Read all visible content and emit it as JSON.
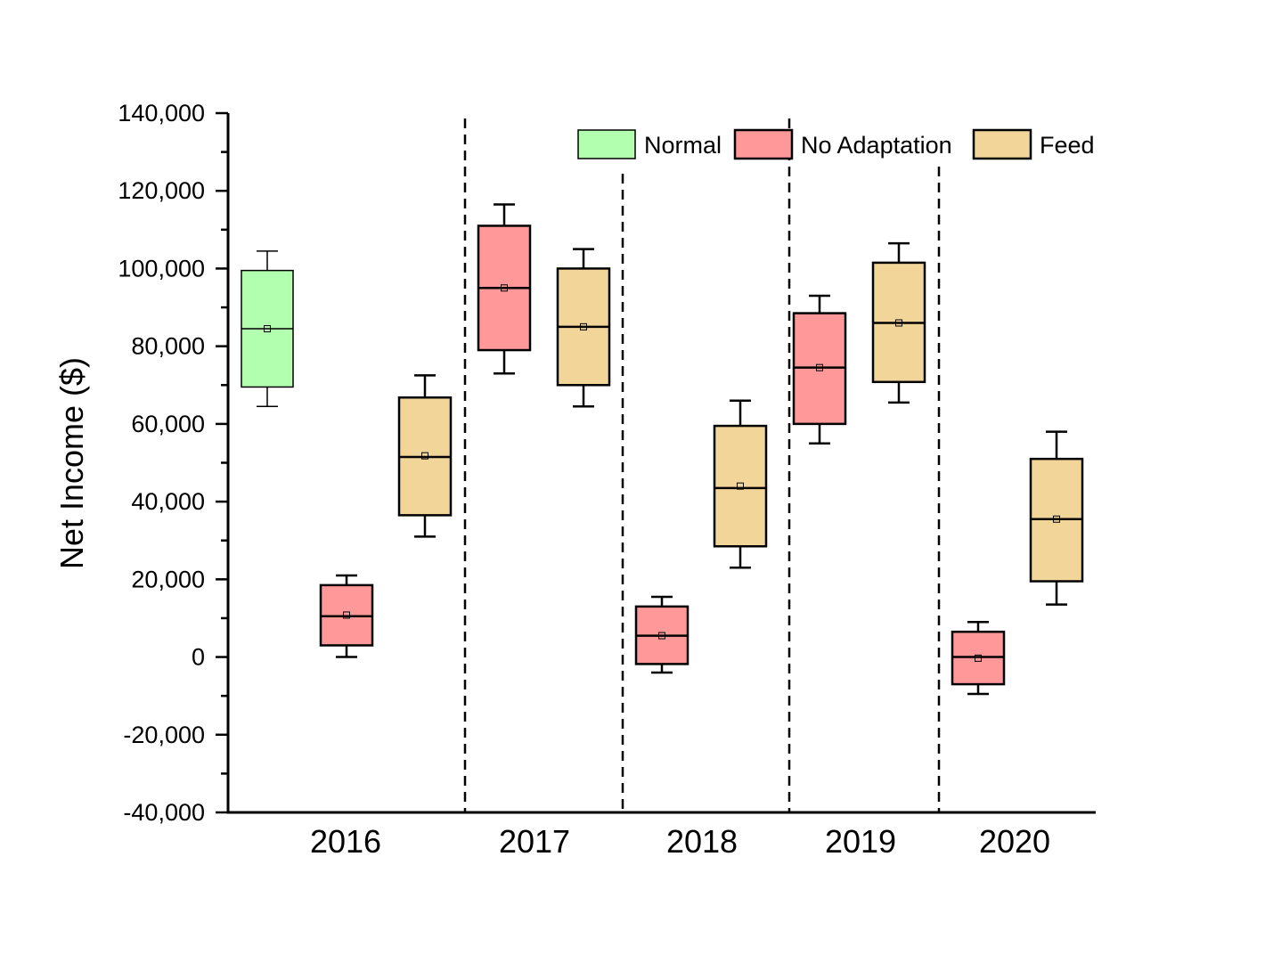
{
  "chart_data": {
    "type": "box",
    "title": "",
    "xlabel": "",
    "ylabel": "Net Income ($)",
    "ylim": [
      -40000,
      140000
    ],
    "yticks": [
      -40000,
      -20000,
      0,
      20000,
      40000,
      60000,
      80000,
      100000,
      120000,
      140000
    ],
    "ytick_labels": [
      "-40,000",
      "-20,000",
      "0",
      "20,000",
      "40,000",
      "60,000",
      "80,000",
      "100,000",
      "120,000",
      "140,000"
    ],
    "categories": [
      "2016",
      "2017",
      "2018",
      "2019",
      "2020"
    ],
    "legend_position": "top-right",
    "series": [
      {
        "name": "Normal",
        "color": "#b3ffb0"
      },
      {
        "name": "No Adaptation",
        "color": "#ff9999"
      },
      {
        "name": "Feed",
        "color": "#f2d699"
      }
    ],
    "boxes": [
      {
        "year": "2016",
        "series": "Normal",
        "whisker_low": 64500,
        "q1": 69500,
        "median": 84500,
        "q3": 99500,
        "whisker_high": 104500,
        "mean": 84500
      },
      {
        "year": "2016",
        "series": "No Adaptation",
        "whisker_low": 0,
        "q1": 3000,
        "median": 10500,
        "q3": 18500,
        "whisker_high": 21000,
        "mean": 10800
      },
      {
        "year": "2016",
        "series": "Feed",
        "whisker_low": 31000,
        "q1": 36500,
        "median": 51500,
        "q3": 66800,
        "whisker_high": 72500,
        "mean": 51800
      },
      {
        "year": "2017",
        "series": "No Adaptation",
        "whisker_low": 73000,
        "q1": 79000,
        "median": 95000,
        "q3": 111000,
        "whisker_high": 116500,
        "mean": 95000
      },
      {
        "year": "2017",
        "series": "Feed",
        "whisker_low": 64500,
        "q1": 70000,
        "median": 85000,
        "q3": 100000,
        "whisker_high": 105000,
        "mean": 85000
      },
      {
        "year": "2018",
        "series": "No Adaptation",
        "whisker_low": -4000,
        "q1": -1800,
        "median": 5500,
        "q3": 13000,
        "whisker_high": 15500,
        "mean": 5500
      },
      {
        "year": "2018",
        "series": "Feed",
        "whisker_low": 23000,
        "q1": 28500,
        "median": 43500,
        "q3": 59500,
        "whisker_high": 66000,
        "mean": 44000
      },
      {
        "year": "2019",
        "series": "No Adaptation",
        "whisker_low": 55000,
        "q1": 60000,
        "median": 74500,
        "q3": 88500,
        "whisker_high": 93000,
        "mean": 74500
      },
      {
        "year": "2019",
        "series": "Feed",
        "whisker_low": 65500,
        "q1": 70800,
        "median": 86000,
        "q3": 101500,
        "whisker_high": 106500,
        "mean": 86000
      },
      {
        "year": "2020",
        "series": "No Adaptation",
        "whisker_low": -9500,
        "q1": -7000,
        "median": 0,
        "q3": 6500,
        "whisker_high": 9000,
        "mean": -300
      },
      {
        "year": "2020",
        "series": "Feed",
        "whisker_low": 13500,
        "q1": 19500,
        "median": 35500,
        "q3": 51000,
        "whisker_high": 58000,
        "mean": 35500
      }
    ]
  }
}
